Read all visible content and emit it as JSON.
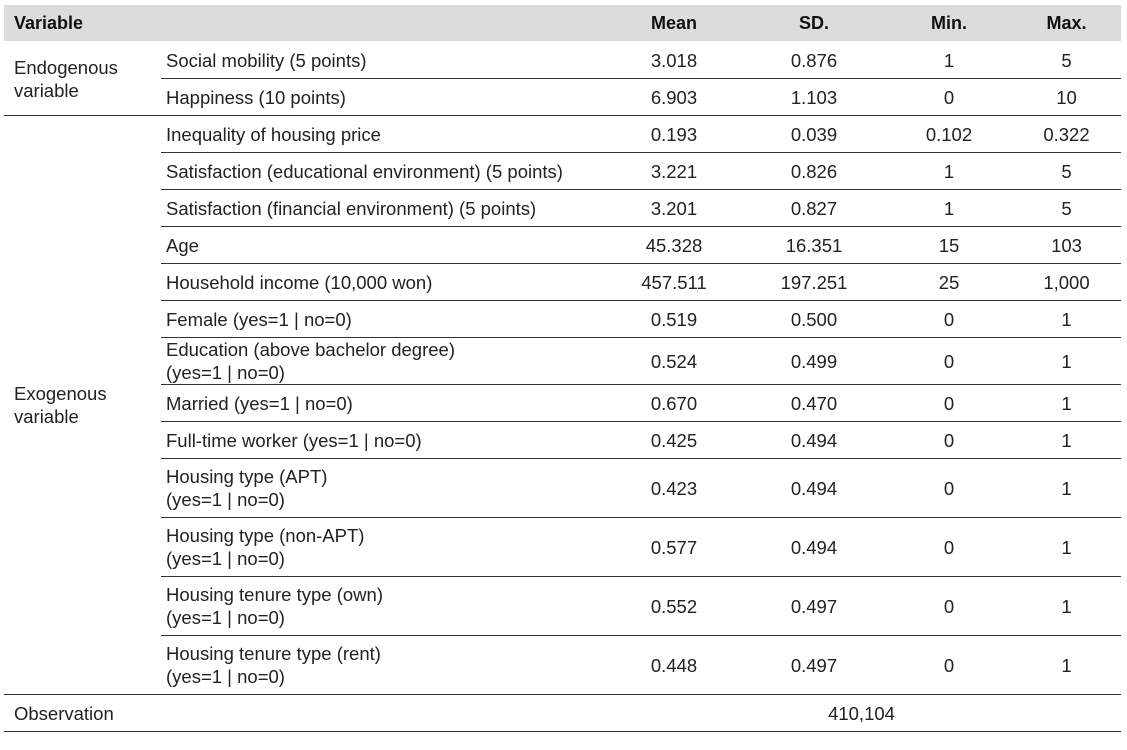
{
  "header": {
    "variable": "Variable",
    "mean": "Mean",
    "sd": "SD.",
    "min": "Min.",
    "max": "Max."
  },
  "groups": {
    "endogenous": "Endogenous\nvariable",
    "exogenous": "Exogenous\nvariable"
  },
  "rows": [
    {
      "label": "Social mobility (5 points)",
      "mean": "3.018",
      "sd": "0.876",
      "min": "1",
      "max": "5"
    },
    {
      "label": "Happiness (10 points)",
      "mean": "6.903",
      "sd": "1.103",
      "min": "0",
      "max": "10"
    },
    {
      "label": "Inequality of housing price",
      "mean": "0.193",
      "sd": "0.039",
      "min": "0.102",
      "max": "0.322"
    },
    {
      "label": "Satisfaction (educational environment) (5 points)",
      "mean": "3.221",
      "sd": "0.826",
      "min": "1",
      "max": "5"
    },
    {
      "label": "Satisfaction (financial environment) (5 points)",
      "mean": "3.201",
      "sd": "0.827",
      "min": "1",
      "max": "5"
    },
    {
      "label": "Age",
      "mean": "45.328",
      "sd": "16.351",
      "min": "15",
      "max": "103"
    },
    {
      "label": "Household income (10,000 won)",
      "mean": "457.511",
      "sd": "197.251",
      "min": "25",
      "max": "1,000"
    },
    {
      "label": "Female (yes=1 | no=0)",
      "mean": "0.519",
      "sd": "0.500",
      "min": "0",
      "max": "1"
    },
    {
      "label": "Education (above bachelor degree)\n(yes=1 | no=0)",
      "mean": "0.524",
      "sd": "0.499",
      "min": "0",
      "max": "1"
    },
    {
      "label": "Married (yes=1 | no=0)",
      "mean": "0.670",
      "sd": "0.470",
      "min": "0",
      "max": "1"
    },
    {
      "label": "Full-time worker (yes=1 | no=0)",
      "mean": "0.425",
      "sd": "0.494",
      "min": "0",
      "max": "1"
    },
    {
      "label": "Housing type (APT)\n(yes=1 | no=0)",
      "mean": "0.423",
      "sd": "0.494",
      "min": "0",
      "max": "1"
    },
    {
      "label": "Housing type (non-APT)\n(yes=1 | no=0)",
      "mean": "0.577",
      "sd": "0.494",
      "min": "0",
      "max": "1"
    },
    {
      "label": "Housing tenure type (own)\n(yes=1 | no=0)",
      "mean": "0.552",
      "sd": "0.497",
      "min": "0",
      "max": "1"
    },
    {
      "label": "Housing tenure type (rent)\n(yes=1 | no=0)",
      "mean": "0.448",
      "sd": "0.497",
      "min": "0",
      "max": "1"
    }
  ],
  "observation": {
    "label": "Observation",
    "value": "410,104"
  }
}
